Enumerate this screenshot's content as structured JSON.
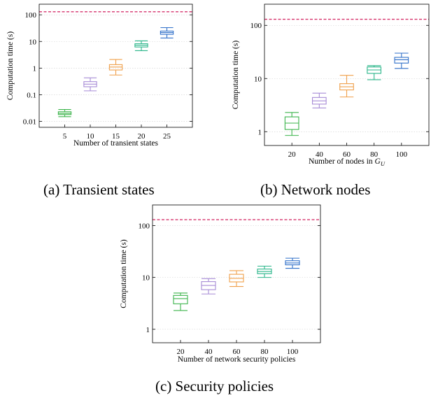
{
  "captions": {
    "a": "(a) Transient states",
    "b": "(b) Network nodes",
    "c": "(c) Security policies"
  },
  "chart_data": [
    {
      "type": "boxplot",
      "scale": "log",
      "ylabel": "Computation time (s)",
      "xlabel": "Number of transient states",
      "xlabel_sub": "",
      "ylim": [
        0.006,
        250
      ],
      "yticks": [
        0.01,
        0.1,
        1,
        10,
        100
      ],
      "ytick_labels": [
        "0.01",
        "0.1",
        "1",
        "10",
        "100"
      ],
      "categories": [
        "5",
        "10",
        "15",
        "20",
        "25"
      ],
      "threshold": 130,
      "threshold_color": "#d6336c",
      "grid": true,
      "boxes": [
        {
          "min": 0.015,
          "q1": 0.018,
          "median": 0.02,
          "q3": 0.023,
          "max": 0.028,
          "color": "#3cb44b"
        },
        {
          "min": 0.14,
          "q1": 0.2,
          "median": 0.25,
          "q3": 0.31,
          "max": 0.43,
          "color": "#a78bd6"
        },
        {
          "min": 0.55,
          "q1": 0.85,
          "median": 1.1,
          "q3": 1.35,
          "max": 2.1,
          "color": "#f0a04b"
        },
        {
          "min": 4.5,
          "q1": 6.2,
          "median": 7.2,
          "q3": 8.2,
          "max": 10.5,
          "color": "#2bb68a"
        },
        {
          "min": 13.5,
          "q1": 18.5,
          "median": 21.5,
          "q3": 24.5,
          "max": 33,
          "color": "#2f6fc9"
        }
      ]
    },
    {
      "type": "boxplot",
      "scale": "log",
      "ylabel": "Computation time (s)",
      "xlabel": "Number of nodes in ",
      "xlabel_sub": "G",
      "xlabel_subscript": "U",
      "ylim": [
        0.55,
        250
      ],
      "yticks": [
        1,
        10,
        100
      ],
      "ytick_labels": [
        "1",
        "10",
        "100"
      ],
      "categories": [
        "20",
        "40",
        "60",
        "80",
        "100"
      ],
      "threshold": 130,
      "threshold_color": "#d6336c",
      "grid": true,
      "boxes": [
        {
          "min": 0.85,
          "q1": 1.1,
          "median": 1.45,
          "q3": 1.9,
          "max": 2.3,
          "color": "#3cb44b"
        },
        {
          "min": 2.8,
          "q1": 3.3,
          "median": 3.8,
          "q3": 4.4,
          "max": 5.3,
          "color": "#a78bd6"
        },
        {
          "min": 4.5,
          "q1": 6.1,
          "median": 7.0,
          "q3": 8.0,
          "max": 11.5,
          "color": "#f0a04b"
        },
        {
          "min": 9.5,
          "q1": 12.5,
          "median": 14.5,
          "q3": 16.5,
          "max": 17.5,
          "color": "#2bb68a"
        },
        {
          "min": 15.5,
          "q1": 19.5,
          "median": 22.5,
          "q3": 25.0,
          "max": 30,
          "color": "#2f6fc9"
        }
      ]
    },
    {
      "type": "boxplot",
      "scale": "log",
      "ylabel": "Computation time (s)",
      "xlabel": "Number of network security policies",
      "xlabel_sub": "",
      "ylim": [
        0.55,
        250
      ],
      "yticks": [
        1,
        10,
        100
      ],
      "ytick_labels": [
        "1",
        "10",
        "100"
      ],
      "categories": [
        "20",
        "40",
        "60",
        "80",
        "100"
      ],
      "threshold": 130,
      "threshold_color": "#d6336c",
      "grid": true,
      "boxes": [
        {
          "min": 2.3,
          "q1": 3.1,
          "median": 3.9,
          "q3": 4.5,
          "max": 5.0,
          "color": "#3cb44b"
        },
        {
          "min": 4.8,
          "q1": 5.8,
          "median": 7.0,
          "q3": 8.3,
          "max": 9.5,
          "color": "#a78bd6"
        },
        {
          "min": 6.7,
          "q1": 8.2,
          "median": 9.6,
          "q3": 11.5,
          "max": 13.5,
          "color": "#f0a04b"
        },
        {
          "min": 10,
          "q1": 11.8,
          "median": 13.0,
          "q3": 14.5,
          "max": 16.5,
          "color": "#2bb68a"
        },
        {
          "min": 15,
          "q1": 17.5,
          "median": 19,
          "q3": 21,
          "max": 23.5,
          "color": "#2f6fc9"
        }
      ]
    }
  ]
}
